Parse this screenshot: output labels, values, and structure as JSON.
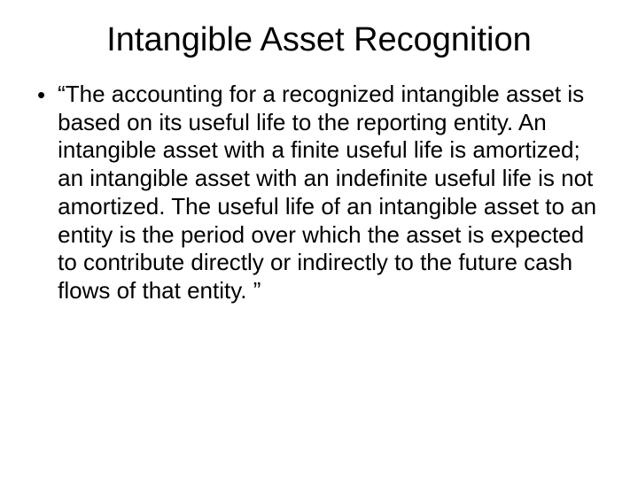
{
  "slide": {
    "title": "Intangible Asset Recognition",
    "title_fontsize": 38,
    "title_color": "#000000",
    "background_color": "#ffffff",
    "bullets": [
      {
        "marker": "•",
        "text": "“The accounting for a recognized intangible asset is based on its useful life to the reporting entity.  An intangible asset with a finite useful life is amortized; an intangible asset with an indefinite useful life is not amortized.  The useful life of an intangible asset to an entity is the period over which the asset is expected to contribute directly or indirectly to the future cash flows of that entity. ”"
      }
    ],
    "body_fontsize": 26,
    "body_color": "#000000",
    "font_family": "Arial"
  }
}
